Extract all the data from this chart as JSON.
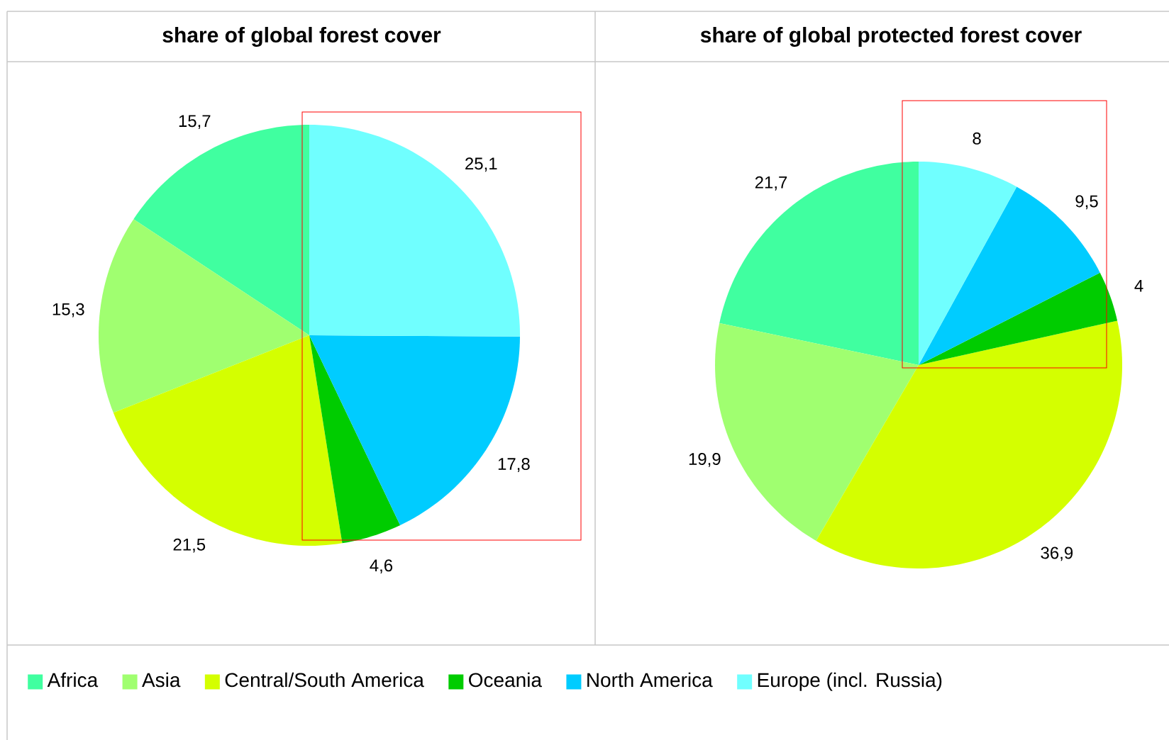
{
  "chart_data": [
    {
      "type": "pie",
      "title": "share of global forest cover",
      "categories": [
        "Africa",
        "Asia",
        "Central/South America",
        "Oceania",
        "North America",
        "Europe (incl. Russia)"
      ],
      "values": [
        15.7,
        15.3,
        21.5,
        4.6,
        17.8,
        25.1
      ],
      "value_labels": [
        "15,7",
        "15,3",
        "21,5",
        "4,6",
        "17,8",
        "25,1"
      ],
      "colors": [
        "#40ffa0",
        "#a0ff70",
        "#d4ff00",
        "#00cc00",
        "#00ccff",
        "#70ffff"
      ],
      "legend": "bottom"
    },
    {
      "type": "pie",
      "title": "share of global protected forest cover",
      "categories": [
        null,
        null,
        null,
        null,
        null,
        null
      ],
      "values": [
        21.7,
        19.9,
        36.9,
        4,
        9.5,
        8
      ],
      "value_labels": [
        "21,7",
        "19,9",
        "36,9",
        "4",
        "9,5",
        "8"
      ],
      "colors": [
        "#40ffa0",
        "#a0ff70",
        "#d4ff00",
        "#00cc00",
        "#00ccff",
        "#70ffff"
      ]
    }
  ]
}
